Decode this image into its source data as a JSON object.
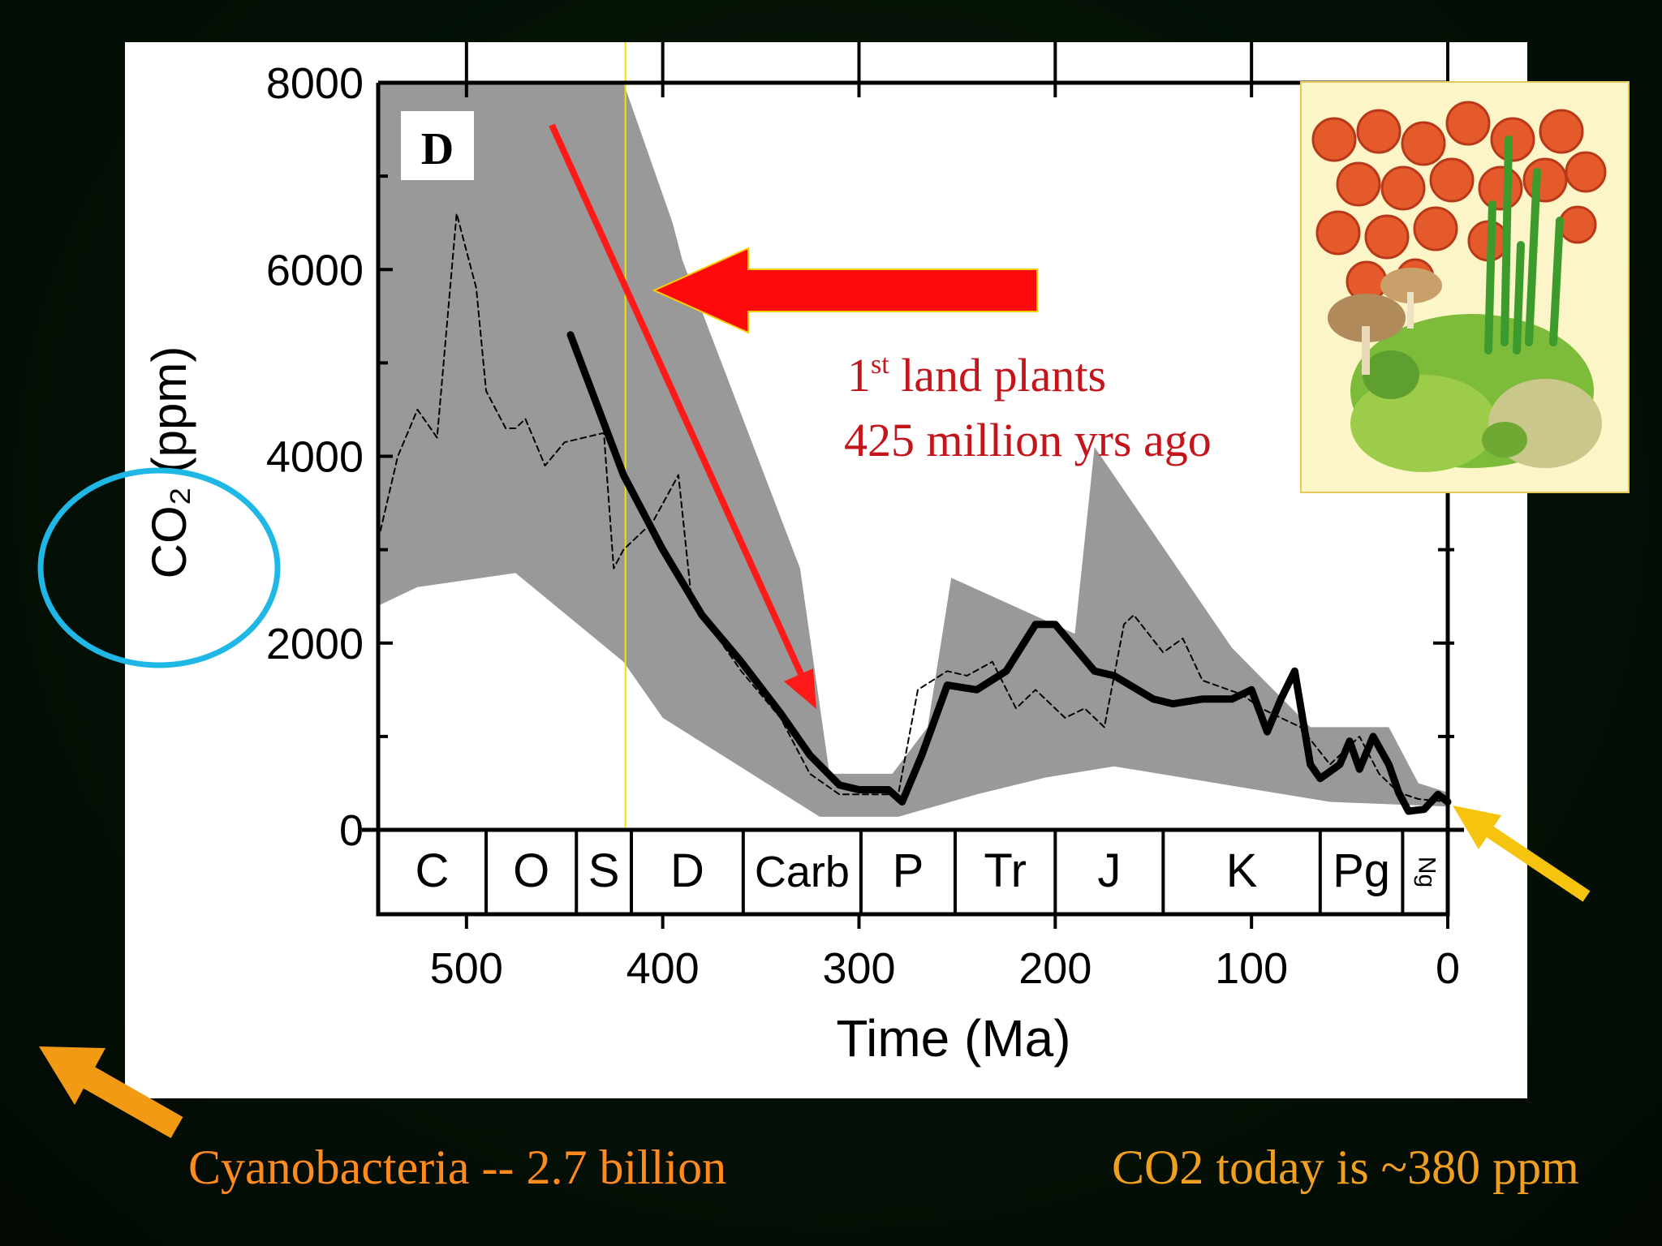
{
  "slide": {
    "caption_left": "Cyanobacteria -- 2.7 billion",
    "caption_right": "CO2 today is ~380 ppm",
    "plant_illustration": "early-land-plants-illustration",
    "colors": {
      "background": "#041005",
      "caption_left": "#ff8a1e",
      "caption_right": "#f0a020",
      "annotation_red": "#c4151c",
      "big_arrow_red": "#ff0a0a",
      "highlight_circle": "#1fb8e6",
      "marker_line": "#f2e000"
    }
  },
  "chart_data": {
    "type": "line",
    "panel_label": "D",
    "xlabel": "Time (Ma)",
    "ylabel": "CO₂ (ppm)",
    "xlim": [
      545,
      0
    ],
    "ylim": [
      0,
      8000
    ],
    "x_ticks": [
      500,
      400,
      300,
      200,
      100,
      0
    ],
    "y_ticks": [
      0,
      2000,
      4000,
      6000,
      8000
    ],
    "annotation": {
      "line1_sup": "st",
      "line1_lead": "1",
      "line1_rest": " land plants",
      "line2": "425 million yrs ago",
      "marker_x": 419
    },
    "periods": [
      {
        "label": "C",
        "start": 545,
        "end": 490
      },
      {
        "label": "O",
        "start": 490,
        "end": 444
      },
      {
        "label": "S",
        "start": 444,
        "end": 416
      },
      {
        "label": "D",
        "start": 416,
        "end": 359
      },
      {
        "label": "Carb",
        "start": 359,
        "end": 299
      },
      {
        "label": "P",
        "start": 299,
        "end": 251
      },
      {
        "label": "Tr",
        "start": 251,
        "end": 200
      },
      {
        "label": "J",
        "start": 200,
        "end": 145
      },
      {
        "label": "K",
        "start": 145,
        "end": 65
      },
      {
        "label": "Pg",
        "start": 65,
        "end": 23
      },
      {
        "label": "Ng",
        "start": 23,
        "end": 0
      }
    ],
    "uncertainty_band": {
      "upper": [
        [
          545,
          8000
        ],
        [
          420,
          8000
        ],
        [
          395,
          6500
        ],
        [
          390,
          6100
        ],
        [
          330,
          2800
        ],
        [
          315,
          600
        ],
        [
          283,
          600
        ],
        [
          265,
          1100
        ],
        [
          253,
          2700
        ],
        [
          190,
          2100
        ],
        [
          180,
          4100
        ],
        [
          110,
          1950
        ],
        [
          70,
          1100
        ],
        [
          30,
          1100
        ],
        [
          15,
          500
        ],
        [
          0,
          400
        ]
      ],
      "lower": [
        [
          0,
          250
        ],
        [
          60,
          300
        ],
        [
          170,
          680
        ],
        [
          205,
          560
        ],
        [
          240,
          380
        ],
        [
          280,
          140
        ],
        [
          320,
          140
        ],
        [
          400,
          1200
        ],
        [
          420,
          1800
        ],
        [
          475,
          2750
        ],
        [
          525,
          2600
        ],
        [
          545,
          2400
        ]
      ]
    },
    "series": [
      {
        "name": "",
        "style": "solid",
        "points": [
          [
            447,
            5300
          ],
          [
            420,
            3800
          ],
          [
            400,
            3000
          ],
          [
            380,
            2300
          ],
          [
            360,
            1800
          ],
          [
            340,
            1250
          ],
          [
            325,
            800
          ],
          [
            310,
            480
          ],
          [
            300,
            430
          ],
          [
            285,
            430
          ],
          [
            278,
            300
          ],
          [
            268,
            800
          ],
          [
            255,
            1550
          ],
          [
            240,
            1500
          ],
          [
            225,
            1700
          ],
          [
            210,
            2200
          ],
          [
            200,
            2200
          ],
          [
            180,
            1700
          ],
          [
            170,
            1650
          ],
          [
            150,
            1400
          ],
          [
            140,
            1350
          ],
          [
            125,
            1400
          ],
          [
            110,
            1400
          ],
          [
            100,
            1500
          ],
          [
            92,
            1050
          ],
          [
            85,
            1400
          ],
          [
            78,
            1700
          ],
          [
            70,
            700
          ],
          [
            65,
            550
          ],
          [
            55,
            700
          ],
          [
            50,
            950
          ],
          [
            45,
            650
          ],
          [
            38,
            1000
          ],
          [
            30,
            700
          ],
          [
            25,
            400
          ],
          [
            20,
            200
          ],
          [
            12,
            220
          ],
          [
            5,
            380
          ],
          [
            0,
            300
          ]
        ]
      },
      {
        "name": "",
        "style": "dashed",
        "points": [
          [
            545,
            3100
          ],
          [
            535,
            4000
          ],
          [
            525,
            4500
          ],
          [
            515,
            4200
          ],
          [
            505,
            6600
          ],
          [
            495,
            5800
          ],
          [
            490,
            4700
          ],
          [
            480,
            4300
          ],
          [
            475,
            4300
          ],
          [
            470,
            4400
          ],
          [
            460,
            3900
          ],
          [
            450,
            4150
          ],
          [
            430,
            4250
          ],
          [
            425,
            2800
          ],
          [
            420,
            3000
          ],
          [
            405,
            3300
          ],
          [
            392,
            3800
          ],
          [
            385,
            2400
          ],
          [
            380,
            2300
          ],
          [
            360,
            1700
          ],
          [
            340,
            1200
          ],
          [
            325,
            600
          ],
          [
            310,
            380
          ],
          [
            290,
            380
          ],
          [
            280,
            380
          ],
          [
            270,
            1500
          ],
          [
            255,
            1700
          ],
          [
            245,
            1650
          ],
          [
            232,
            1800
          ],
          [
            220,
            1300
          ],
          [
            210,
            1500
          ],
          [
            195,
            1200
          ],
          [
            185,
            1300
          ],
          [
            175,
            1100
          ],
          [
            165,
            2200
          ],
          [
            160,
            2300
          ],
          [
            145,
            1900
          ],
          [
            135,
            2050
          ],
          [
            125,
            1600
          ],
          [
            105,
            1450
          ],
          [
            95,
            1300
          ],
          [
            85,
            1200
          ],
          [
            75,
            1100
          ],
          [
            60,
            700
          ],
          [
            45,
            1000
          ],
          [
            35,
            600
          ],
          [
            25,
            400
          ],
          [
            15,
            330
          ],
          [
            0,
            300
          ]
        ]
      }
    ]
  }
}
